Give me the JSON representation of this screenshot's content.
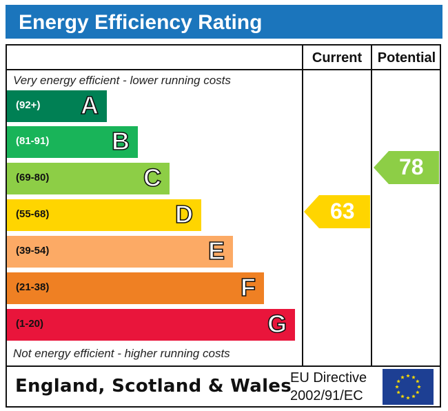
{
  "title": "Energy Efficiency Rating",
  "columns": {
    "current": "Current",
    "potential": "Potential"
  },
  "top_note": "Very energy efficient - lower running costs",
  "bottom_note": "Not energy efficient - higher running costs",
  "footer": {
    "region": "England, Scotland & Wales",
    "directive_line1": "EU Directive",
    "directive_line2": "2002/91/EC"
  },
  "chart_data": {
    "type": "bar",
    "categories": [
      "A",
      "B",
      "C",
      "D",
      "E",
      "F",
      "G"
    ],
    "bands": [
      {
        "letter": "A",
        "range": "(92+)",
        "color": "#008054",
        "text_color": "#ffffff"
      },
      {
        "letter": "B",
        "range": "(81-91)",
        "color": "#19b459",
        "text_color": "#ffffff"
      },
      {
        "letter": "C",
        "range": "(69-80)",
        "color": "#8dce46",
        "text_color": "#111111"
      },
      {
        "letter": "D",
        "range": "(55-68)",
        "color": "#ffd500",
        "text_color": "#111111"
      },
      {
        "letter": "E",
        "range": "(39-54)",
        "color": "#fcaa65",
        "text_color": "#111111"
      },
      {
        "letter": "F",
        "range": "(21-38)",
        "color": "#ef8023",
        "text_color": "#111111"
      },
      {
        "letter": "G",
        "range": "(1-20)",
        "color": "#e9153b",
        "text_color": "#111111"
      }
    ],
    "current": {
      "value": 63,
      "band": "D",
      "color": "#ffd500"
    },
    "potential": {
      "value": 78,
      "band": "C",
      "color": "#8dce46"
    }
  }
}
